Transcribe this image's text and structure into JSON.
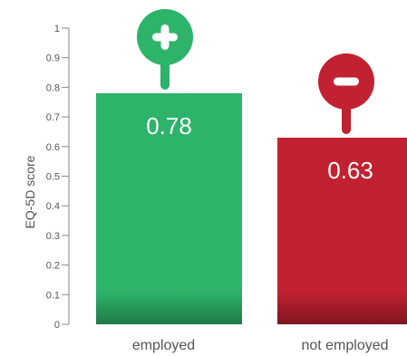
{
  "chart_data": {
    "type": "bar",
    "title": "",
    "xlabel": "",
    "ylabel": "EQ-5D score",
    "ylim": [
      0,
      1
    ],
    "yticks": [
      "0",
      "0.1",
      "0.2",
      "0.3",
      "0.4",
      "0.5",
      "0.6",
      "0.7",
      "0.8",
      "0.9",
      "1"
    ],
    "categories": [
      "employed",
      "not employed"
    ],
    "values": [
      0.78,
      0.63
    ],
    "value_labels": [
      "0.78",
      "0.63"
    ],
    "colors": [
      "#2db36a",
      "#c12131"
    ],
    "shade_colors": [
      "#1f7a48",
      "#7e1520"
    ],
    "pin_icons": [
      "plus-icon",
      "minus-icon"
    ],
    "grid": false
  }
}
